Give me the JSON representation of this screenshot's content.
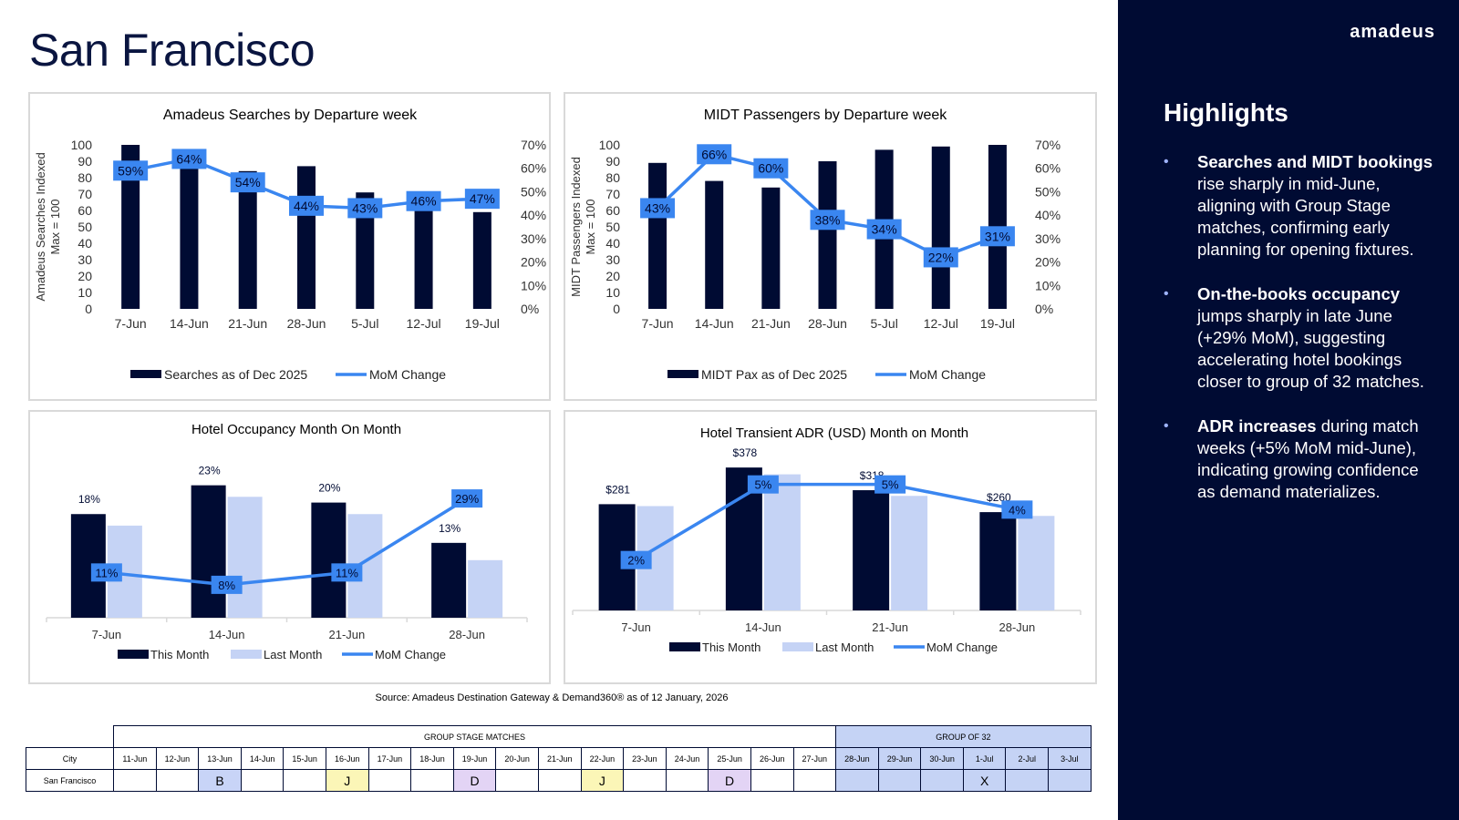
{
  "page": {
    "title": "San Francisco",
    "source": "Source: Amadeus Destination Gateway & Demand360® as of 12 January, 2026"
  },
  "brand": {
    "logo": "amadeus"
  },
  "highlights": {
    "title": "Highlights",
    "items": [
      {
        "bold": "Searches and MIDT bookings",
        "text": " rise sharply in mid-June, aligning with Group Stage matches, confirming early planning for opening fixtures."
      },
      {
        "bold": "On-the-books occupancy",
        "text": " jumps sharply in late June (+29% MoM), suggesting accelerating hotel bookings closer to group of 32 matches."
      },
      {
        "bold": "ADR increases",
        "text": " during match weeks (+5% MoM mid-June), indicating growing confidence as demand materializes."
      }
    ]
  },
  "colors": {
    "navy": "#000b33",
    "light": "#c5d3f5",
    "line": "#3a86f0",
    "grid": "#d9d9d9"
  },
  "chart_data": [
    {
      "type": "bar",
      "title": "Amadeus Searches by Departure week",
      "ylabel": "Amadeus Searches Indexed",
      "ylabel2": "Max = 100",
      "categories": [
        "7-Jun",
        "14-Jun",
        "21-Jun",
        "28-Jun",
        "5-Jul",
        "12-Jul",
        "19-Jul"
      ],
      "ylim": [
        0,
        100
      ],
      "yticks": [
        "0",
        "10",
        "20",
        "30",
        "40",
        "50",
        "60",
        "70",
        "80",
        "90",
        "100"
      ],
      "y2lim": [
        0,
        70
      ],
      "y2ticks": [
        "0%",
        "10%",
        "20%",
        "30%",
        "40%",
        "50%",
        "60%",
        "70%"
      ],
      "series": [
        {
          "name": "Searches as of Dec 2025",
          "kind": "bar",
          "values": [
            100,
            88,
            84,
            87,
            71,
            63,
            59
          ]
        },
        {
          "name": "MoM Change",
          "kind": "line",
          "axis": "right",
          "values": [
            59,
            64,
            54,
            44,
            43,
            46,
            47
          ],
          "labels": [
            "59%",
            "64%",
            "54%",
            "44%",
            "43%",
            "46%",
            "47%"
          ]
        }
      ],
      "legend": [
        "Searches as of Dec 2025",
        "MoM Change"
      ]
    },
    {
      "type": "bar",
      "title": "MIDT Passengers by Departure week",
      "ylabel": "MIDT Passengers Indexed",
      "ylabel2": "Max = 100",
      "categories": [
        "7-Jun",
        "14-Jun",
        "21-Jun",
        "28-Jun",
        "5-Jul",
        "12-Jul",
        "19-Jul"
      ],
      "ylim": [
        0,
        100
      ],
      "yticks": [
        "0",
        "10",
        "20",
        "30",
        "40",
        "50",
        "60",
        "70",
        "80",
        "90",
        "100"
      ],
      "y2lim": [
        0,
        70
      ],
      "y2ticks": [
        "0%",
        "10%",
        "20%",
        "30%",
        "40%",
        "50%",
        "60%",
        "70%"
      ],
      "series": [
        {
          "name": "MIDT Pax as of Dec 2025",
          "kind": "bar",
          "values": [
            89,
            78,
            74,
            90,
            97,
            99,
            100
          ]
        },
        {
          "name": "MoM Change",
          "kind": "line",
          "axis": "right",
          "values": [
            43,
            66,
            60,
            38,
            34,
            22,
            31
          ],
          "labels": [
            "43%",
            "66%",
            "60%",
            "38%",
            "34%",
            "22%",
            "31%"
          ]
        }
      ],
      "legend": [
        "MIDT Pax as of Dec 2025",
        "MoM Change"
      ]
    },
    {
      "type": "bar",
      "title": "Hotel Occupancy Month On Month",
      "categories": [
        "7-Jun",
        "14-Jun",
        "21-Jun",
        "28-Jun"
      ],
      "ylim": [
        0,
        25
      ],
      "y2lim": [
        0,
        35
      ],
      "series": [
        {
          "name": "This Month",
          "kind": "bar",
          "values": [
            18,
            23,
            20,
            13
          ],
          "labels": [
            "18%",
            "23%",
            "20%",
            "13%"
          ]
        },
        {
          "name": "Last Month",
          "kind": "bar",
          "values": [
            16,
            21,
            18,
            10
          ]
        },
        {
          "name": "MoM Change",
          "kind": "line",
          "axis": "right",
          "values": [
            11,
            8,
            11,
            29
          ],
          "labels": [
            "11%",
            "8%",
            "11%",
            "29%"
          ]
        }
      ],
      "legend": [
        "This Month",
        "Last Month",
        "MoM Change"
      ]
    },
    {
      "type": "bar",
      "title": "Hotel Transient ADR (USD) Month on Month",
      "categories": [
        "7-Jun",
        "14-Jun",
        "21-Jun",
        "28-Jun"
      ],
      "ylim": [
        0,
        400
      ],
      "y2lim": [
        0,
        6
      ],
      "series": [
        {
          "name": "This Month",
          "kind": "bar",
          "values": [
            281,
            378,
            318,
            260
          ],
          "labels": [
            "$281",
            "$378",
            "$318",
            "$260"
          ]
        },
        {
          "name": "Last Month",
          "kind": "bar",
          "values": [
            276,
            360,
            303,
            250
          ]
        },
        {
          "name": "MoM Change",
          "kind": "line",
          "axis": "right",
          "values": [
            2,
            5,
            5,
            4
          ],
          "labels": [
            "2%",
            "5%",
            "5%",
            "4%"
          ]
        }
      ],
      "legend": [
        "This Month",
        "Last Month",
        "MoM Change"
      ]
    }
  ],
  "schedule": {
    "group_stage_label": "GROUP STAGE MATCHES",
    "group32_label": "GROUP OF 32",
    "city_header": "City",
    "dates": [
      "11-Jun",
      "12-Jun",
      "13-Jun",
      "14-Jun",
      "15-Jun",
      "16-Jun",
      "17-Jun",
      "18-Jun",
      "19-Jun",
      "20-Jun",
      "21-Jun",
      "22-Jun",
      "23-Jun",
      "24-Jun",
      "25-Jun",
      "26-Jun",
      "27-Jun",
      "28-Jun",
      "29-Jun",
      "30-Jun",
      "1-Jul",
      "2-Jul",
      "3-Jul"
    ],
    "city": "San Francisco",
    "marks": [
      "",
      "",
      "B",
      "",
      "",
      "J",
      "",
      "",
      "D",
      "",
      "",
      "J",
      "",
      "",
      "D",
      "",
      "",
      "",
      "",
      "",
      "X",
      "",
      ""
    ]
  }
}
